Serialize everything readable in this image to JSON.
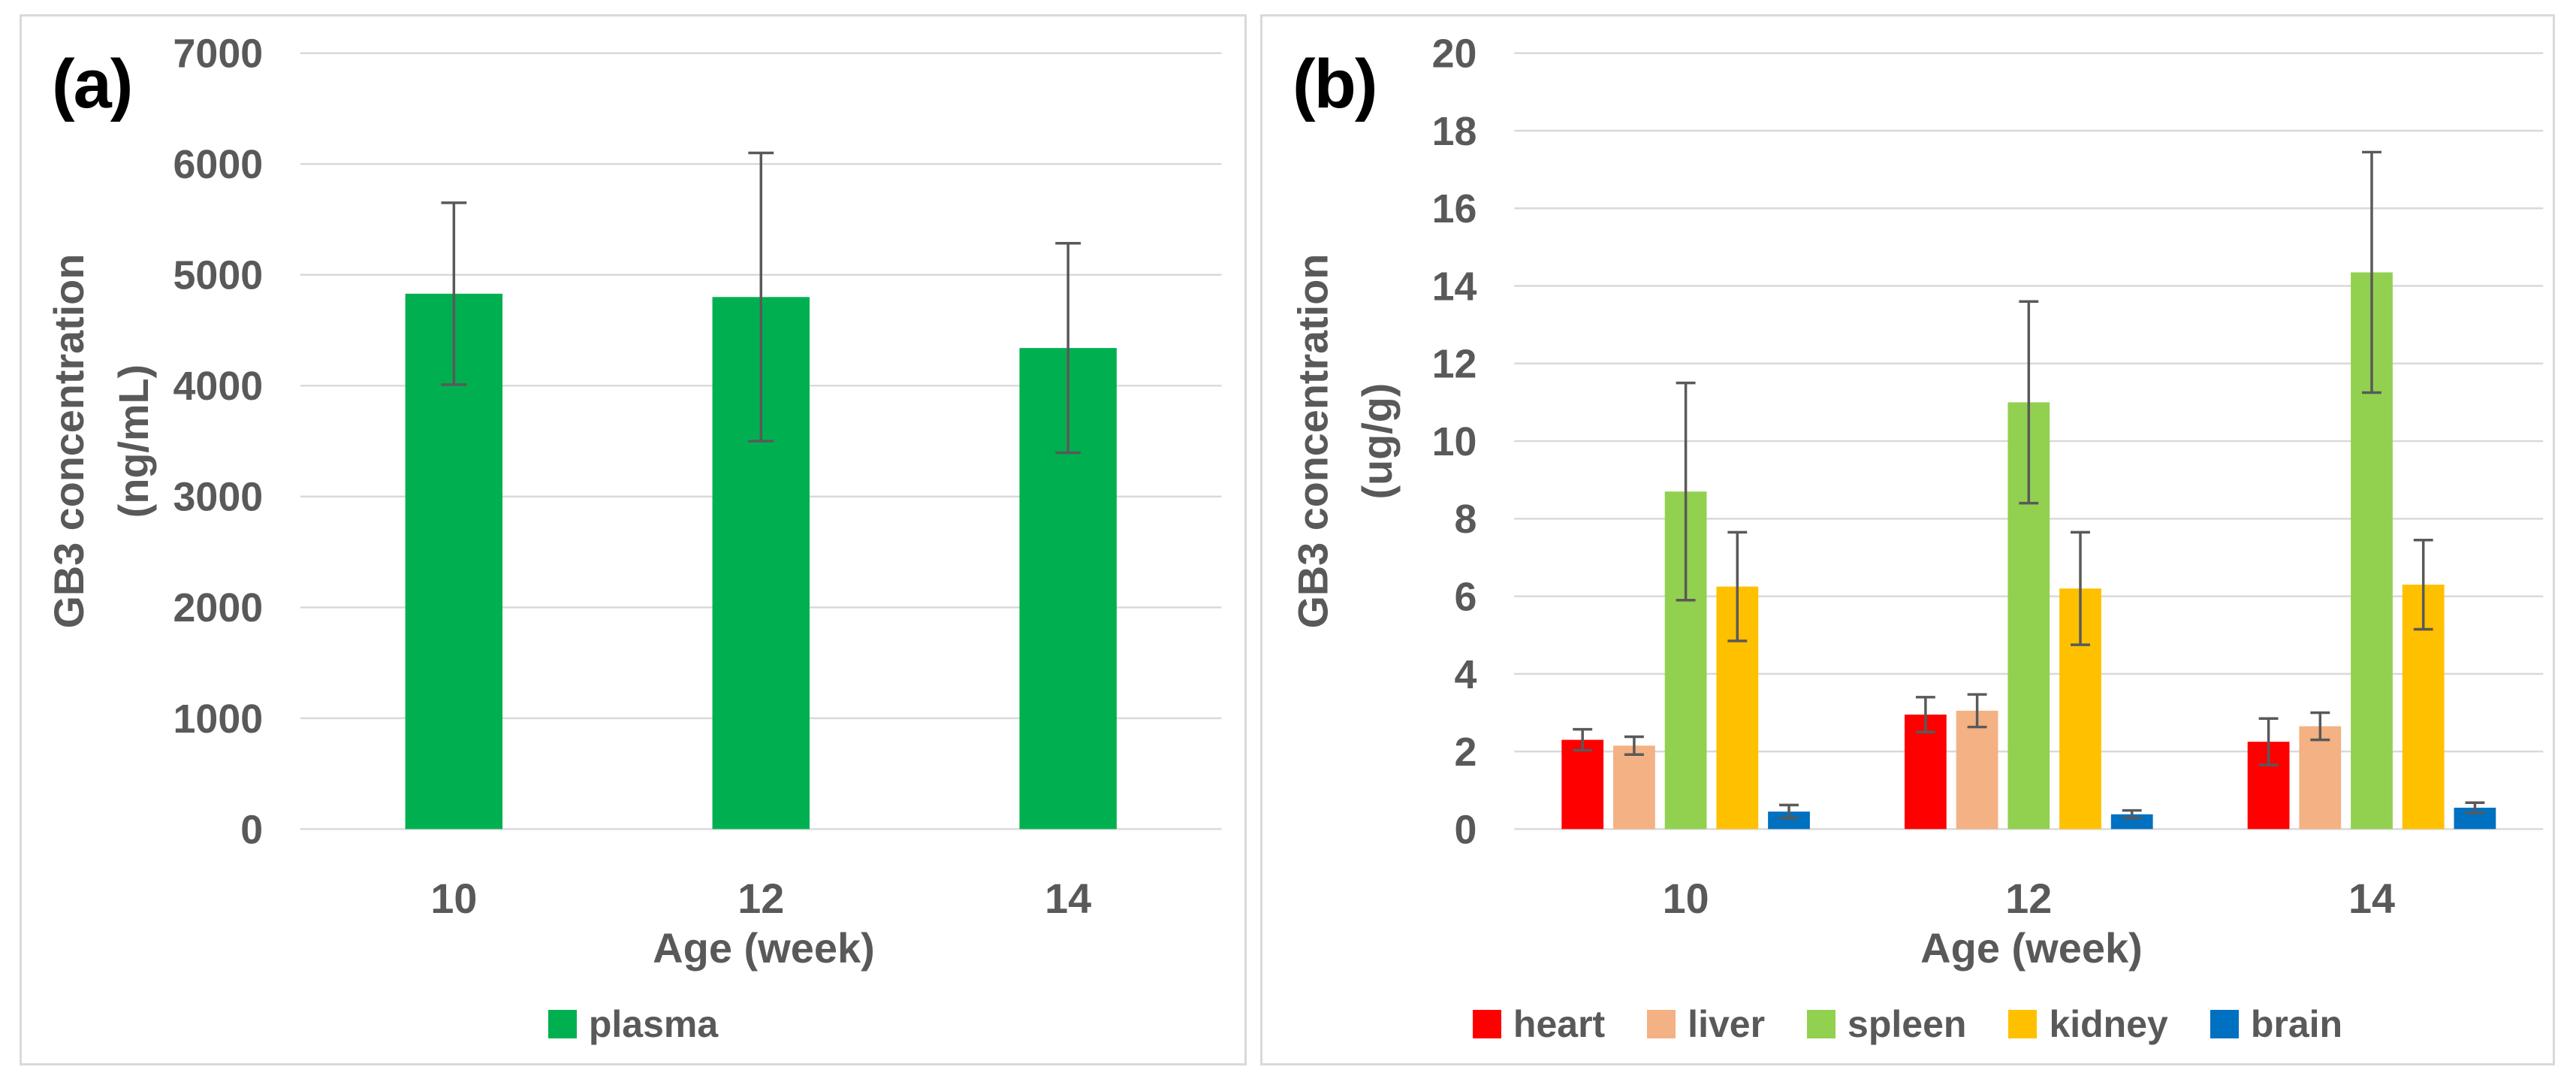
{
  "figure": {
    "background": "#FFFFFF",
    "panel_border_color": "#D9D9D9",
    "gridline_color": "#D9D9D9",
    "axis_text_color": "#595959",
    "error_bar_color": "#595959",
    "panel_label_color": "#000000"
  },
  "chart_data": [
    {
      "type": "bar",
      "panel_label": "(a)",
      "title": "",
      "xlabel": "Age (week)",
      "ylabel_lines": [
        "GB3 concentration",
        "(ng/mL)"
      ],
      "categories": [
        "10",
        "12",
        "14"
      ],
      "ylim": [
        0,
        7000
      ],
      "ytick_step": 1000,
      "ytick_labels": [
        "0",
        "1000",
        "2000",
        "3000",
        "4000",
        "5000",
        "6000",
        "7000"
      ],
      "grid": true,
      "legend_position": "bottom",
      "series": [
        {
          "name": "plasma",
          "color": "#00B050",
          "values": [
            4830,
            4800,
            4340
          ],
          "errors": [
            820,
            1300,
            945
          ]
        }
      ]
    },
    {
      "type": "bar",
      "panel_label": "(b)",
      "title": "",
      "xlabel": "Age (week)",
      "ylabel_lines": [
        "GB3 concentration",
        "(ug/g)"
      ],
      "categories": [
        "10",
        "12",
        "14"
      ],
      "ylim": [
        0,
        20
      ],
      "ytick_step": 2,
      "ytick_labels": [
        "0",
        "2",
        "4",
        "6",
        "8",
        "10",
        "12",
        "14",
        "16",
        "18",
        "20"
      ],
      "grid": true,
      "legend_position": "bottom",
      "series": [
        {
          "name": "heart",
          "color": "#FF0000",
          "values": [
            2.3,
            2.95,
            2.25
          ],
          "errors": [
            0.27,
            0.45,
            0.6
          ]
        },
        {
          "name": "liver",
          "color": "#F4B183",
          "values": [
            2.15,
            3.05,
            2.65
          ],
          "errors": [
            0.23,
            0.42,
            0.35
          ]
        },
        {
          "name": "spleen",
          "color": "#92D050",
          "values": [
            8.7,
            11.0,
            14.35
          ],
          "errors": [
            2.8,
            2.6,
            3.1
          ]
        },
        {
          "name": "kidney",
          "color": "#FFC000",
          "values": [
            6.25,
            6.2,
            6.3
          ],
          "errors": [
            1.4,
            1.45,
            1.15
          ]
        },
        {
          "name": "brain",
          "color": "#0070C0",
          "values": [
            0.45,
            0.38,
            0.55
          ],
          "errors": [
            0.17,
            0.1,
            0.13
          ]
        }
      ]
    }
  ]
}
